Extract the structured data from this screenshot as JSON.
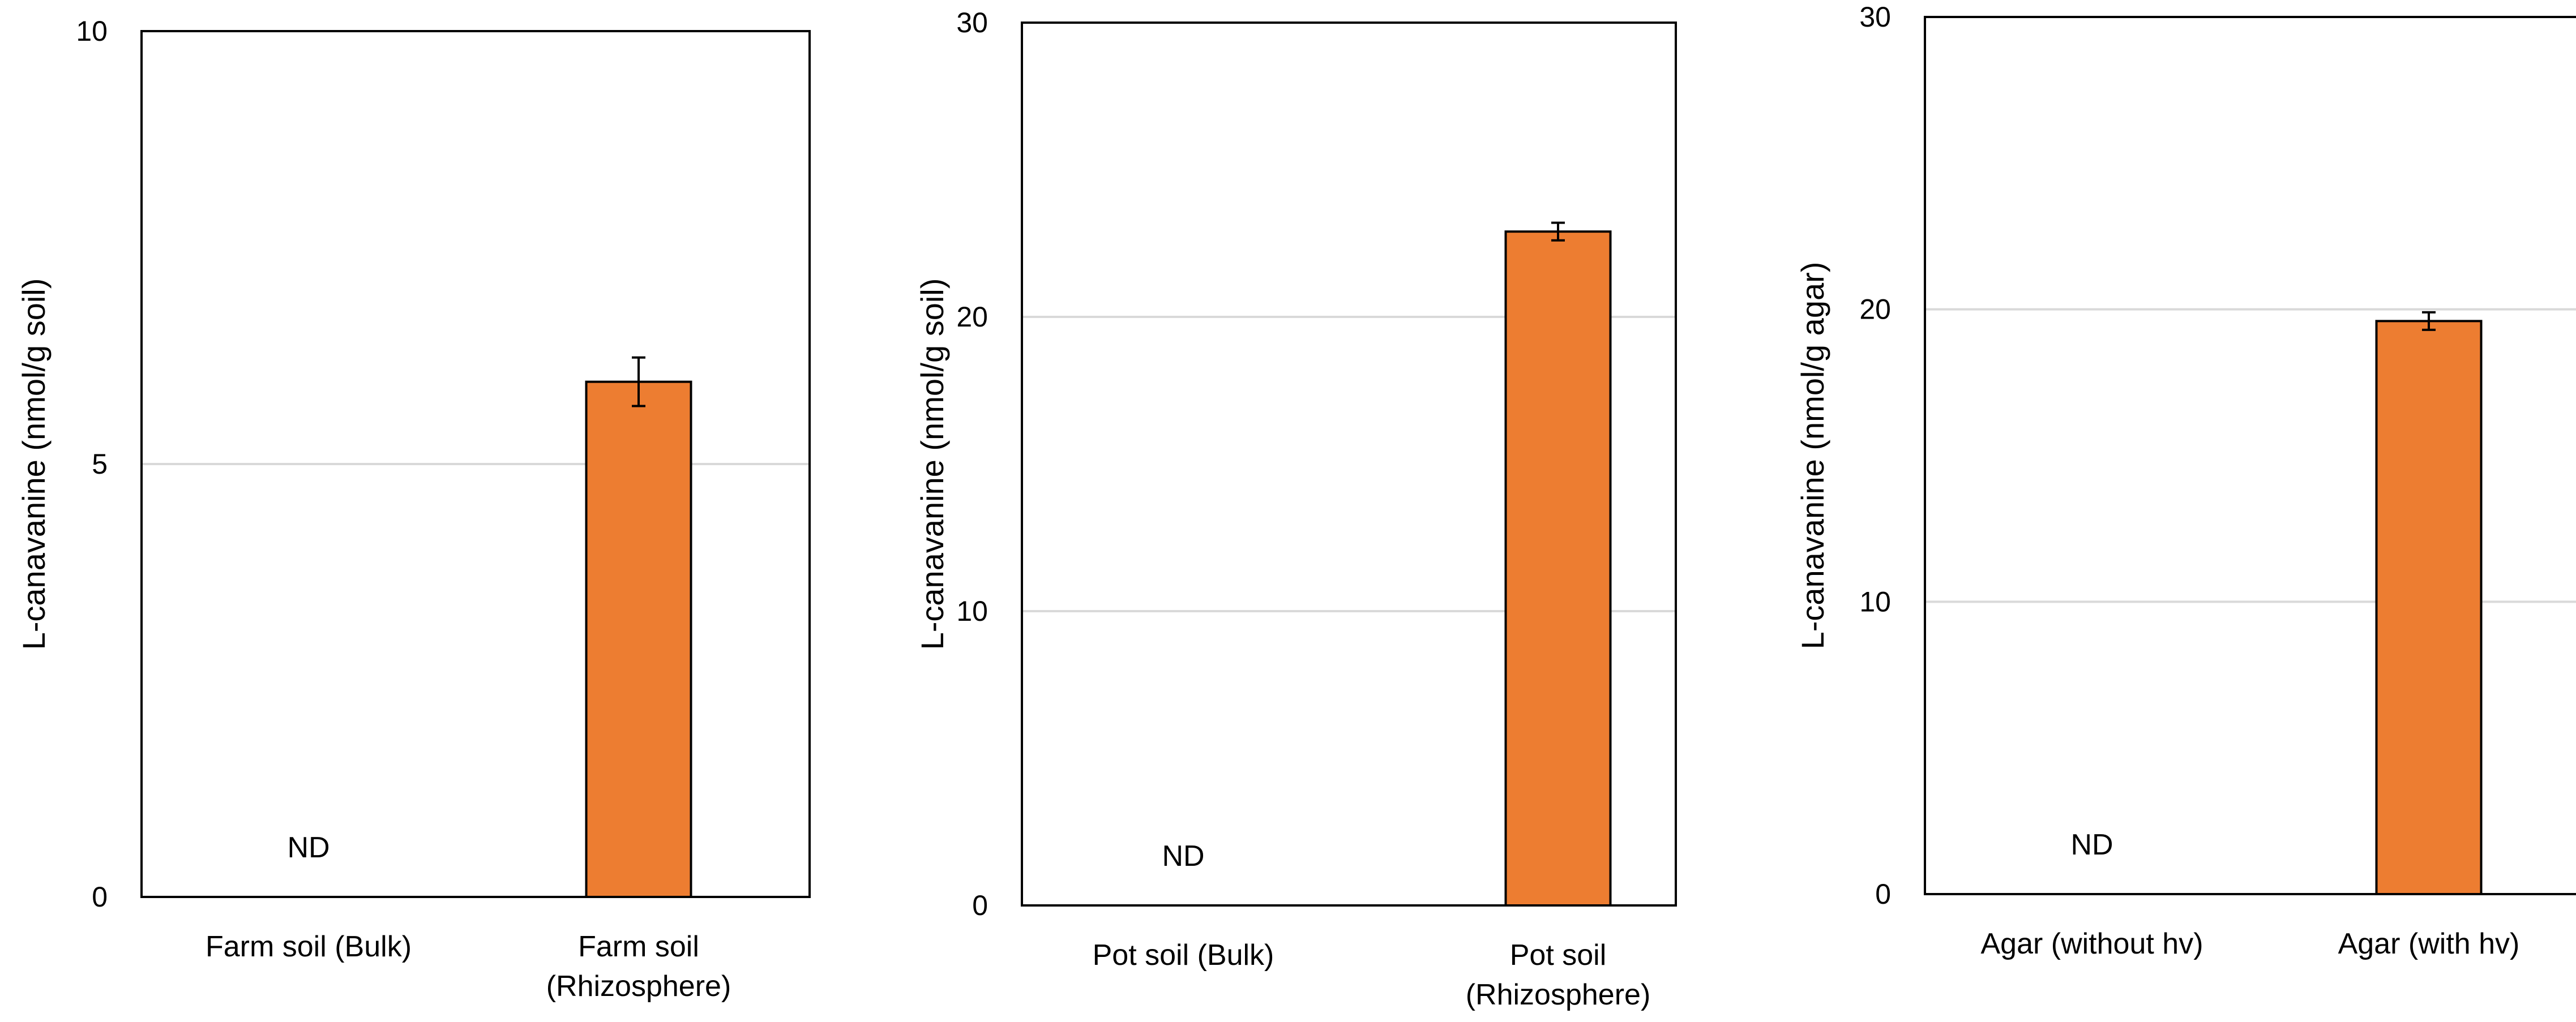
{
  "chart_data": [
    {
      "type": "bar",
      "categories": [
        "Farm soil (Bulk)",
        "Farm soil (Rhizosphere)"
      ],
      "category_lines": [
        [
          "Farm soil (Bulk)"
        ],
        [
          "Farm soil",
          "(Rhizosphere)"
        ]
      ],
      "values": [
        null,
        5.95
      ],
      "errors": [
        null,
        0.28
      ],
      "value_annotations": [
        "ND",
        null
      ],
      "ylabel": "L-canavanine  (nmol/g soil)",
      "ylim": [
        0,
        10
      ],
      "yticks": [
        0,
        5,
        10
      ],
      "grid": true,
      "bar_color": "#ED7D31"
    },
    {
      "type": "bar",
      "categories": [
        "Pot soil (Bulk)",
        "Pot soil (Rhizosphere)"
      ],
      "category_lines": [
        [
          "Pot soil (Bulk)"
        ],
        [
          "Pot soil",
          "(Rhizosphere)"
        ]
      ],
      "values": [
        null,
        22.9
      ],
      "errors": [
        null,
        0.3
      ],
      "value_annotations": [
        "ND",
        null
      ],
      "ylabel": "L-canavanine  (nmol/g soil)",
      "ylim": [
        0,
        30
      ],
      "yticks": [
        0,
        10,
        20,
        30
      ],
      "grid": true,
      "bar_color": "#ED7D31"
    },
    {
      "type": "bar",
      "categories": [
        "Agar (without hv)",
        "Agar (with hv)"
      ],
      "category_lines": [
        [
          "Agar (without hv)"
        ],
        [
          "Agar (with hv)"
        ]
      ],
      "values": [
        null,
        19.6
      ],
      "errors": [
        null,
        0.3
      ],
      "value_annotations": [
        "ND",
        null
      ],
      "ylabel": "L-canavanine  (nmol/g agar)",
      "ylim": [
        0,
        30
      ],
      "yticks": [
        0,
        10,
        20,
        30
      ],
      "grid": true,
      "bar_color": "#ED7D31"
    }
  ]
}
